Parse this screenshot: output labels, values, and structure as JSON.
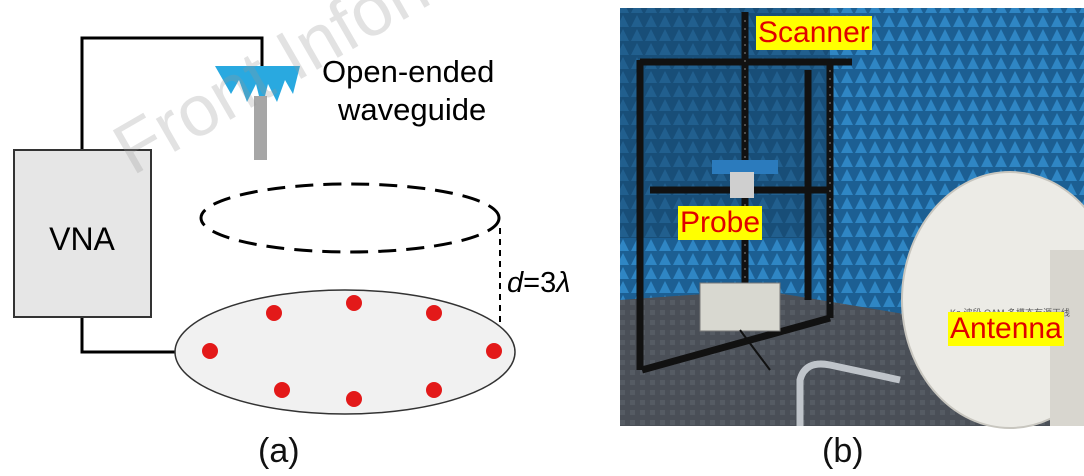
{
  "panel_a": {
    "vna_label": "VNA",
    "waveguide_line1": "Open-ended",
    "waveguide_line2": "waveguide",
    "distance_var": "d",
    "distance_val": "=3",
    "distance_unit": "λ",
    "caption": "(a)"
  },
  "panel_b": {
    "scanner_label": "Scanner",
    "probe_label": "Probe",
    "antenna_label": "Antenna",
    "caption": "(b)"
  },
  "watermark": "Front Inform Tech",
  "colors": {
    "tag_bg": "#ffff00",
    "tag_text": "#e00000",
    "dots": "#e31919",
    "horn": "#29a9e0",
    "anechoic_blue": "#1f6fa8"
  }
}
